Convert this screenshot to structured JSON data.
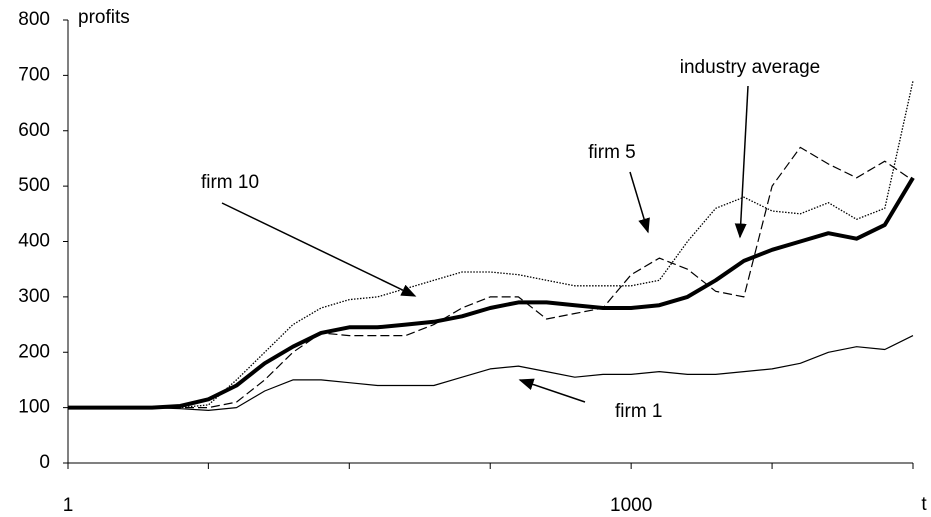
{
  "chart_data": {
    "type": "line",
    "y_label": "profits",
    "x_label": "t",
    "x": [
      1,
      50,
      100,
      150,
      200,
      250,
      300,
      350,
      400,
      450,
      500,
      550,
      600,
      650,
      700,
      750,
      800,
      850,
      900,
      950,
      1000,
      1050,
      1100,
      1150,
      1200,
      1250,
      1300,
      1350,
      1400,
      1450,
      1500
    ],
    "series": [
      {
        "name": "firm 1",
        "color": "#000000",
        "style": "solid",
        "values": [
          100,
          100,
          100,
          100,
          98,
          95,
          100,
          130,
          150,
          150,
          145,
          140,
          140,
          140,
          155,
          170,
          175,
          165,
          155,
          160,
          160,
          165,
          160,
          160,
          165,
          170,
          180,
          200,
          210,
          205,
          230
        ]
      },
      {
        "name": "firm 5",
        "color": "#000000",
        "style": "dashed",
        "values": [
          100,
          100,
          100,
          100,
          100,
          100,
          110,
          150,
          200,
          235,
          230,
          230,
          230,
          250,
          280,
          300,
          300,
          260,
          270,
          280,
          340,
          370,
          350,
          310,
          300,
          500,
          570,
          540,
          515,
          545,
          510
        ]
      },
      {
        "name": "firm 10",
        "color": "#000000",
        "style": "dotted",
        "values": [
          100,
          100,
          100,
          100,
          100,
          105,
          150,
          200,
          250,
          280,
          295,
          300,
          315,
          330,
          345,
          345,
          340,
          330,
          320,
          320,
          320,
          330,
          400,
          460,
          480,
          455,
          450,
          470,
          440,
          460,
          690
        ]
      },
      {
        "name": "industry average",
        "color": "#000000",
        "style": "thick",
        "values": [
          100,
          100,
          100,
          100,
          103,
          115,
          140,
          180,
          210,
          235,
          245,
          245,
          250,
          255,
          265,
          280,
          290,
          290,
          285,
          280,
          280,
          285,
          300,
          330,
          365,
          385,
          400,
          415,
          405,
          430,
          515
        ]
      }
    ],
    "xlim": [
      1,
      1500
    ],
    "xticks": [
      1,
      1000
    ],
    "xminorticks": [
      250,
      500,
      750,
      1250,
      1500
    ],
    "ylim": [
      0,
      800
    ],
    "yticks": [
      0,
      100,
      200,
      300,
      400,
      500,
      600,
      700,
      800
    ]
  }
}
